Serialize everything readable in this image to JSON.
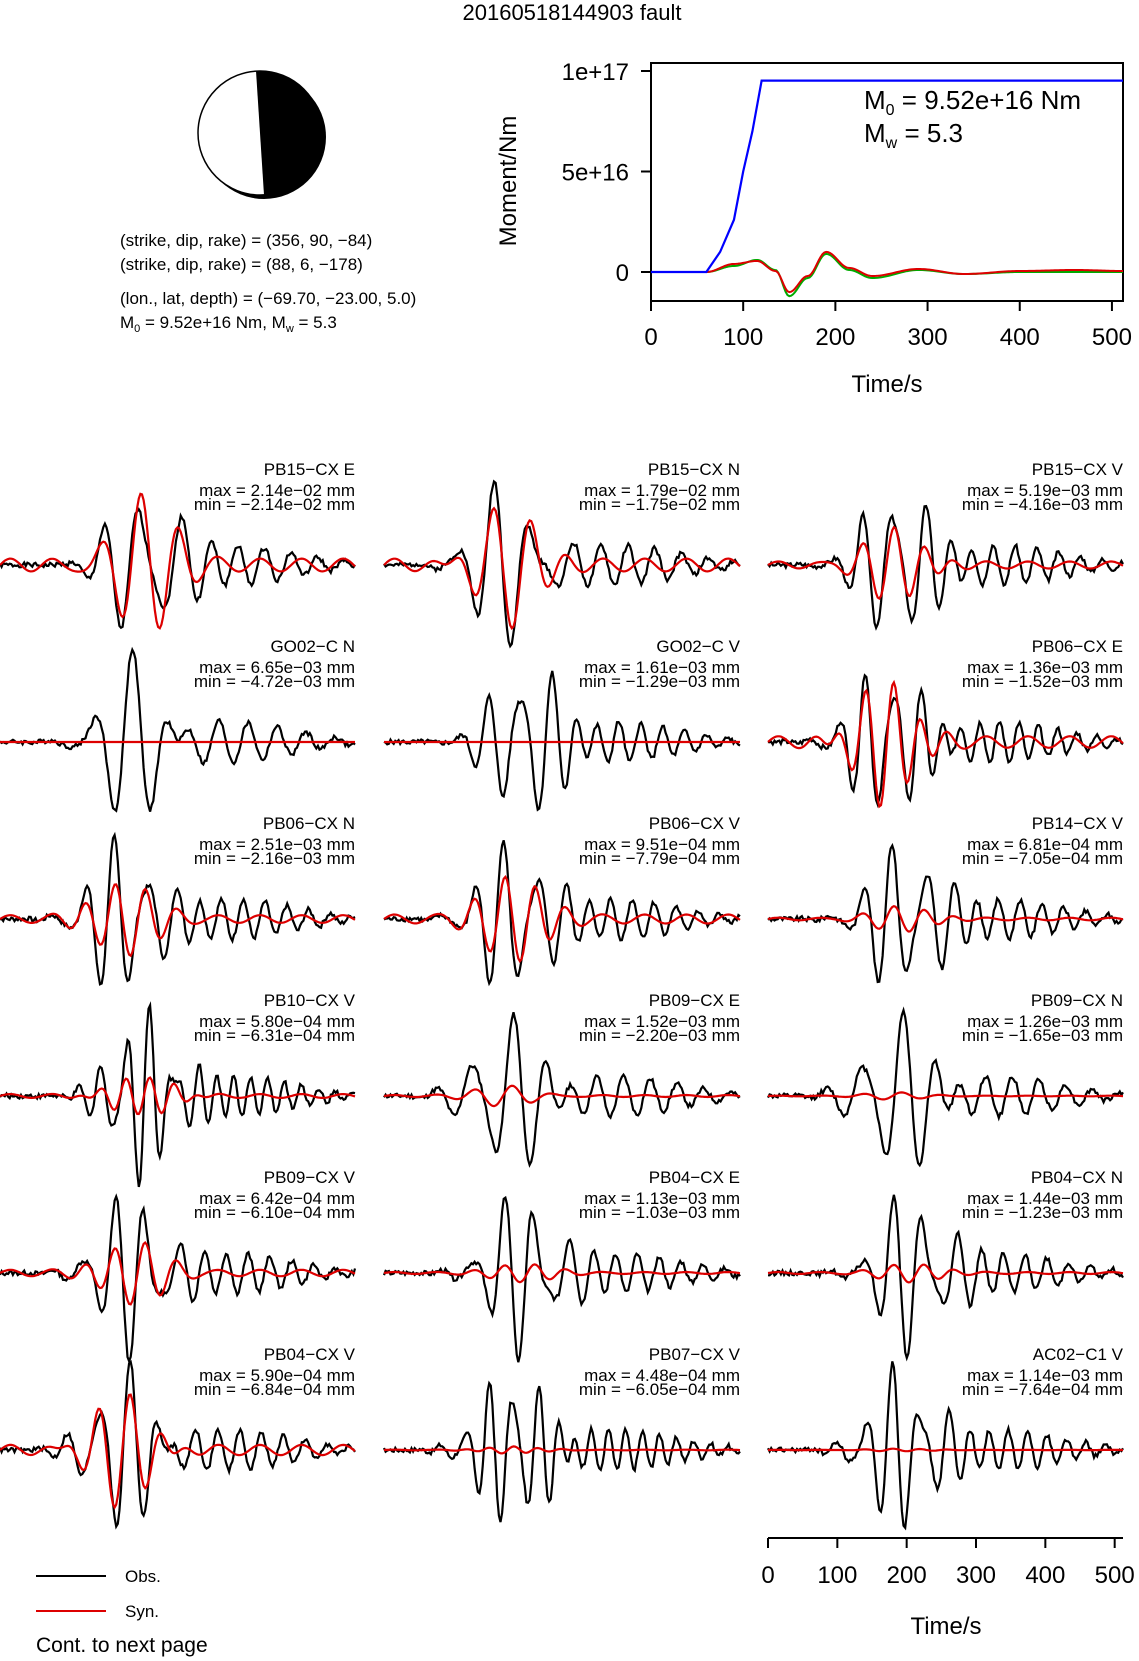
{
  "title": "20160518144903 fault",
  "focal_mechanism": {
    "line1": "(strike, dip, rake) = (356, 90, −84)",
    "line2": "(strike, dip, rake) = (88, 6, −178)",
    "line3": "(lon., lat, depth) = (−69.70, −23.00, 5.0)",
    "line4_m0": "M",
    "line4_sub0": "0",
    "line4_rest1": " = 9.52e+16 Nm, M",
    "line4_subw": "w",
    "line4_rest2": " = 5.3"
  },
  "moment_plot": {
    "ylabel": "Moment/Nm",
    "xlabel": "Time/s",
    "yticks": [
      "0",
      "5e+16",
      "1e+17"
    ],
    "xticks": [
      "0",
      "100",
      "200",
      "300",
      "400",
      "500"
    ],
    "m0_label": "M",
    "m0_sub": "0",
    "m0_value": " = 9.52e+16 Nm",
    "mw_label": "M",
    "mw_sub": "w",
    "mw_value": " = 5.3"
  },
  "chart_data": {
    "type": "line",
    "moment_rate": {
      "xlim": [
        0,
        512
      ],
      "ylim": [
        -1.5e+16,
        1e+17
      ],
      "cumulative_moment": {
        "color": "#0000ff",
        "x": [
          0,
          60,
          75,
          90,
          100,
          110,
          120,
          512
        ],
        "y": [
          0,
          0,
          1e+16,
          2.6e+16,
          5e+16,
          7e+16,
          9.52e+16,
          9.52e+16
        ]
      },
      "moment_rate_1": {
        "color": "#00aa00",
        "x": [
          0,
          60,
          90,
          115,
          135,
          150,
          170,
          190,
          215,
          240,
          290,
          340,
          400,
          460,
          512
        ],
        "y": [
          0,
          0,
          3000000000000000.0,
          6000000000000000.0,
          1000000000000000.0,
          -1.2e+16,
          -3000000000000000.0,
          9000000000000000.0,
          1000000000000000.0,
          -3000000000000000.0,
          1000000000000000.0,
          -1000000000000000.0,
          0,
          0,
          0
        ]
      },
      "moment_rate_2": {
        "color": "#dd0000",
        "x": [
          0,
          60,
          90,
          115,
          135,
          150,
          170,
          190,
          215,
          240,
          290,
          340,
          400,
          460,
          512
        ],
        "y": [
          0,
          0,
          4000000000000000.0,
          5500000000000000.0,
          500000000000000.0,
          -1e+16,
          -2000000000000000.0,
          1e+16,
          2000000000000000.0,
          -2000000000000000.0,
          1500000000000000.0,
          -1000000000000000.0,
          500000000000000.0,
          1000000000000000.0,
          500000000000000.0
        ]
      }
    },
    "waveforms": {
      "xlim": [
        0,
        512
      ],
      "xticks": [
        0,
        100,
        200,
        300,
        400,
        500
      ],
      "xlabel": "Time/s",
      "legend": [
        {
          "name": "Obs.",
          "color": "#000000"
        },
        {
          "name": "Syn.",
          "color": "#dd0000"
        }
      ],
      "stations": [
        {
          "name": "PB15−CX E",
          "max": "max = 2.14e−02 mm",
          "min": "min = −2.14e−02 mm",
          "period": 55,
          "syn_amp": 1.0,
          "seed": 1
        },
        {
          "name": "PB15−CX N",
          "max": "max = 1.79e−02 mm",
          "min": "min = −1.75e−02 mm",
          "period": 55,
          "syn_amp": 1.0,
          "seed": 2
        },
        {
          "name": "PB15−CX V",
          "max": "max = 5.19e−03 mm",
          "min": "min = −4.16e−03 mm",
          "period": 45,
          "syn_amp": 0.55,
          "seed": 3
        },
        {
          "name": "GO02−C N",
          "max": "max = 6.65e−03 mm",
          "min": "min = −4.72e−03 mm",
          "period": 60,
          "syn_amp": 0.0,
          "seed": 4
        },
        {
          "name": "GO02−C V",
          "max": "max = 1.61e−03 mm",
          "min": "min = −1.29e−03 mm",
          "period": 45,
          "syn_amp": 0.0,
          "seed": 5
        },
        {
          "name": "PB06−CX E",
          "max": "max = 1.36e−03 mm",
          "min": "min = −1.52e−03 mm",
          "period": 40,
          "syn_amp": 0.9,
          "seed": 6
        },
        {
          "name": "PB06−CX N",
          "max": "max = 2.51e−03 mm",
          "min": "min = −2.16e−03 mm",
          "period": 45,
          "syn_amp": 0.6,
          "seed": 7
        },
        {
          "name": "PB06−CX V",
          "max": "max = 9.51e−04 mm",
          "min": "min = −7.79e−04 mm",
          "period": 45,
          "syn_amp": 0.7,
          "seed": 8
        },
        {
          "name": "PB14−CX V",
          "max": "max = 6.81e−04 mm",
          "min": "min = −7.05e−04 mm",
          "period": 45,
          "syn_amp": 0.2,
          "seed": 9
        },
        {
          "name": "PB10−CX V",
          "max": "max = 5.80e−04 mm",
          "min": "min = −6.31e−04 mm",
          "period": 35,
          "syn_amp": 0.3,
          "seed": 10
        },
        {
          "name": "PB09−CX E",
          "max": "max = 1.52e−03 mm",
          "min": "min = −2.20e−03 mm",
          "period": 55,
          "syn_amp": 0.15,
          "seed": 11
        },
        {
          "name": "PB09−CX N",
          "max": "max = 1.26e−03 mm",
          "min": "min = −1.65e−03 mm",
          "period": 55,
          "syn_amp": 0.05,
          "seed": 12
        },
        {
          "name": "PB09−CX V",
          "max": "max = 6.42e−04 mm",
          "min": "min = −6.10e−04 mm",
          "period": 45,
          "syn_amp": 0.5,
          "seed": 13
        },
        {
          "name": "PB04−CX E",
          "max": "max = 1.13e−03 mm",
          "min": "min = −1.03e−03 mm",
          "period": 45,
          "syn_amp": 0.15,
          "seed": 14
        },
        {
          "name": "PB04−CX N",
          "max": "max = 1.44e−03 mm",
          "min": "min = −1.23e−03 mm",
          "period": 45,
          "syn_amp": 0.15,
          "seed": 15
        },
        {
          "name": "PB04−CX V",
          "max": "max = 5.90e−04 mm",
          "min": "min = −6.84e−04 mm",
          "period": 45,
          "syn_amp": 0.8,
          "seed": 16
        },
        {
          "name": "PB07−CX V",
          "max": "max = 4.48e−04 mm",
          "min": "min = −6.05e−04 mm",
          "period": 35,
          "syn_amp": 0.05,
          "seed": 17
        },
        {
          "name": "AC02−C1 V",
          "max": "max = 1.14e−03 mm",
          "min": "min = −7.64e−04 mm",
          "period": 40,
          "syn_amp": 0.02,
          "seed": 18
        }
      ]
    }
  },
  "legend": {
    "obs": "Obs.",
    "syn": "Syn."
  },
  "footer": "Cont. to next page"
}
